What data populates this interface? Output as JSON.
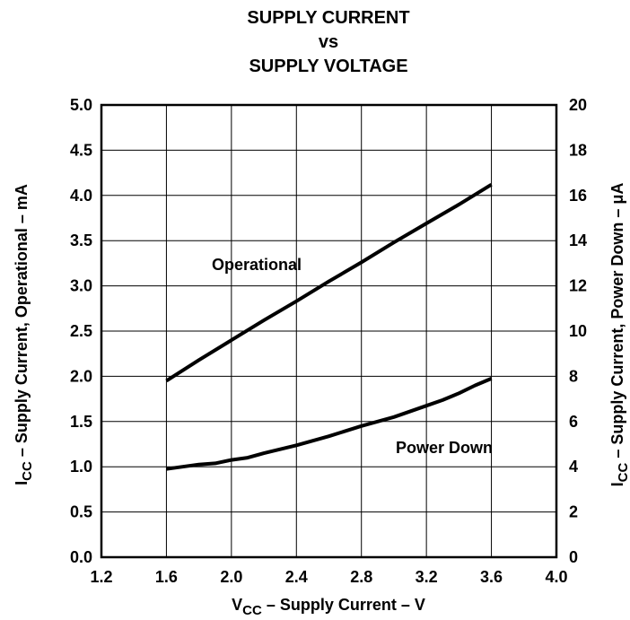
{
  "chart_data": {
    "type": "line",
    "title": [
      "SUPPLY CURRENT",
      "vs",
      "SUPPLY VOLTAGE"
    ],
    "xlabel": {
      "main": "V",
      "sub": "CC",
      "rest": " – Supply Current – V"
    },
    "ylabel_left": {
      "main": "I",
      "sub": "CC",
      "rest": " – Supply Current, Operational – mA"
    },
    "ylabel_right": {
      "main": "I",
      "sub": "CC",
      "rest": " – Supply Current, Power Down – μA"
    },
    "xlim": [
      1.2,
      4.0
    ],
    "ylim_left": [
      0.0,
      5.0
    ],
    "ylim_right": [
      0,
      20
    ],
    "x_ticks": [
      "1.2",
      "1.6",
      "2.0",
      "2.4",
      "2.8",
      "3.2",
      "3.6",
      "4.0"
    ],
    "y_ticks_left": [
      "0.0",
      "0.5",
      "1.0",
      "1.5",
      "2.0",
      "2.5",
      "3.0",
      "3.5",
      "4.0",
      "4.5",
      "5.0"
    ],
    "y_ticks_right": [
      "0",
      "2",
      "4",
      "6",
      "8",
      "10",
      "12",
      "14",
      "16",
      "18",
      "20"
    ],
    "grid": true,
    "series": [
      {
        "name": "Operational",
        "axis": "left",
        "x": [
          1.6,
          1.8,
          2.0,
          2.2,
          2.4,
          2.6,
          2.8,
          3.0,
          3.2,
          3.4,
          3.6
        ],
        "y": [
          1.95,
          2.18,
          2.4,
          2.62,
          2.83,
          3.05,
          3.26,
          3.48,
          3.69,
          3.9,
          4.12
        ]
      },
      {
        "name": "Power Down",
        "axis": "right",
        "x": [
          1.6,
          1.7,
          1.8,
          1.9,
          2.0,
          2.1,
          2.2,
          2.4,
          2.6,
          2.8,
          3.0,
          3.2,
          3.3,
          3.4,
          3.5,
          3.6
        ],
        "y": [
          3.9,
          4.0,
          4.1,
          4.15,
          4.3,
          4.4,
          4.6,
          4.95,
          5.35,
          5.8,
          6.2,
          6.7,
          6.95,
          7.25,
          7.6,
          7.9
        ]
      }
    ]
  }
}
